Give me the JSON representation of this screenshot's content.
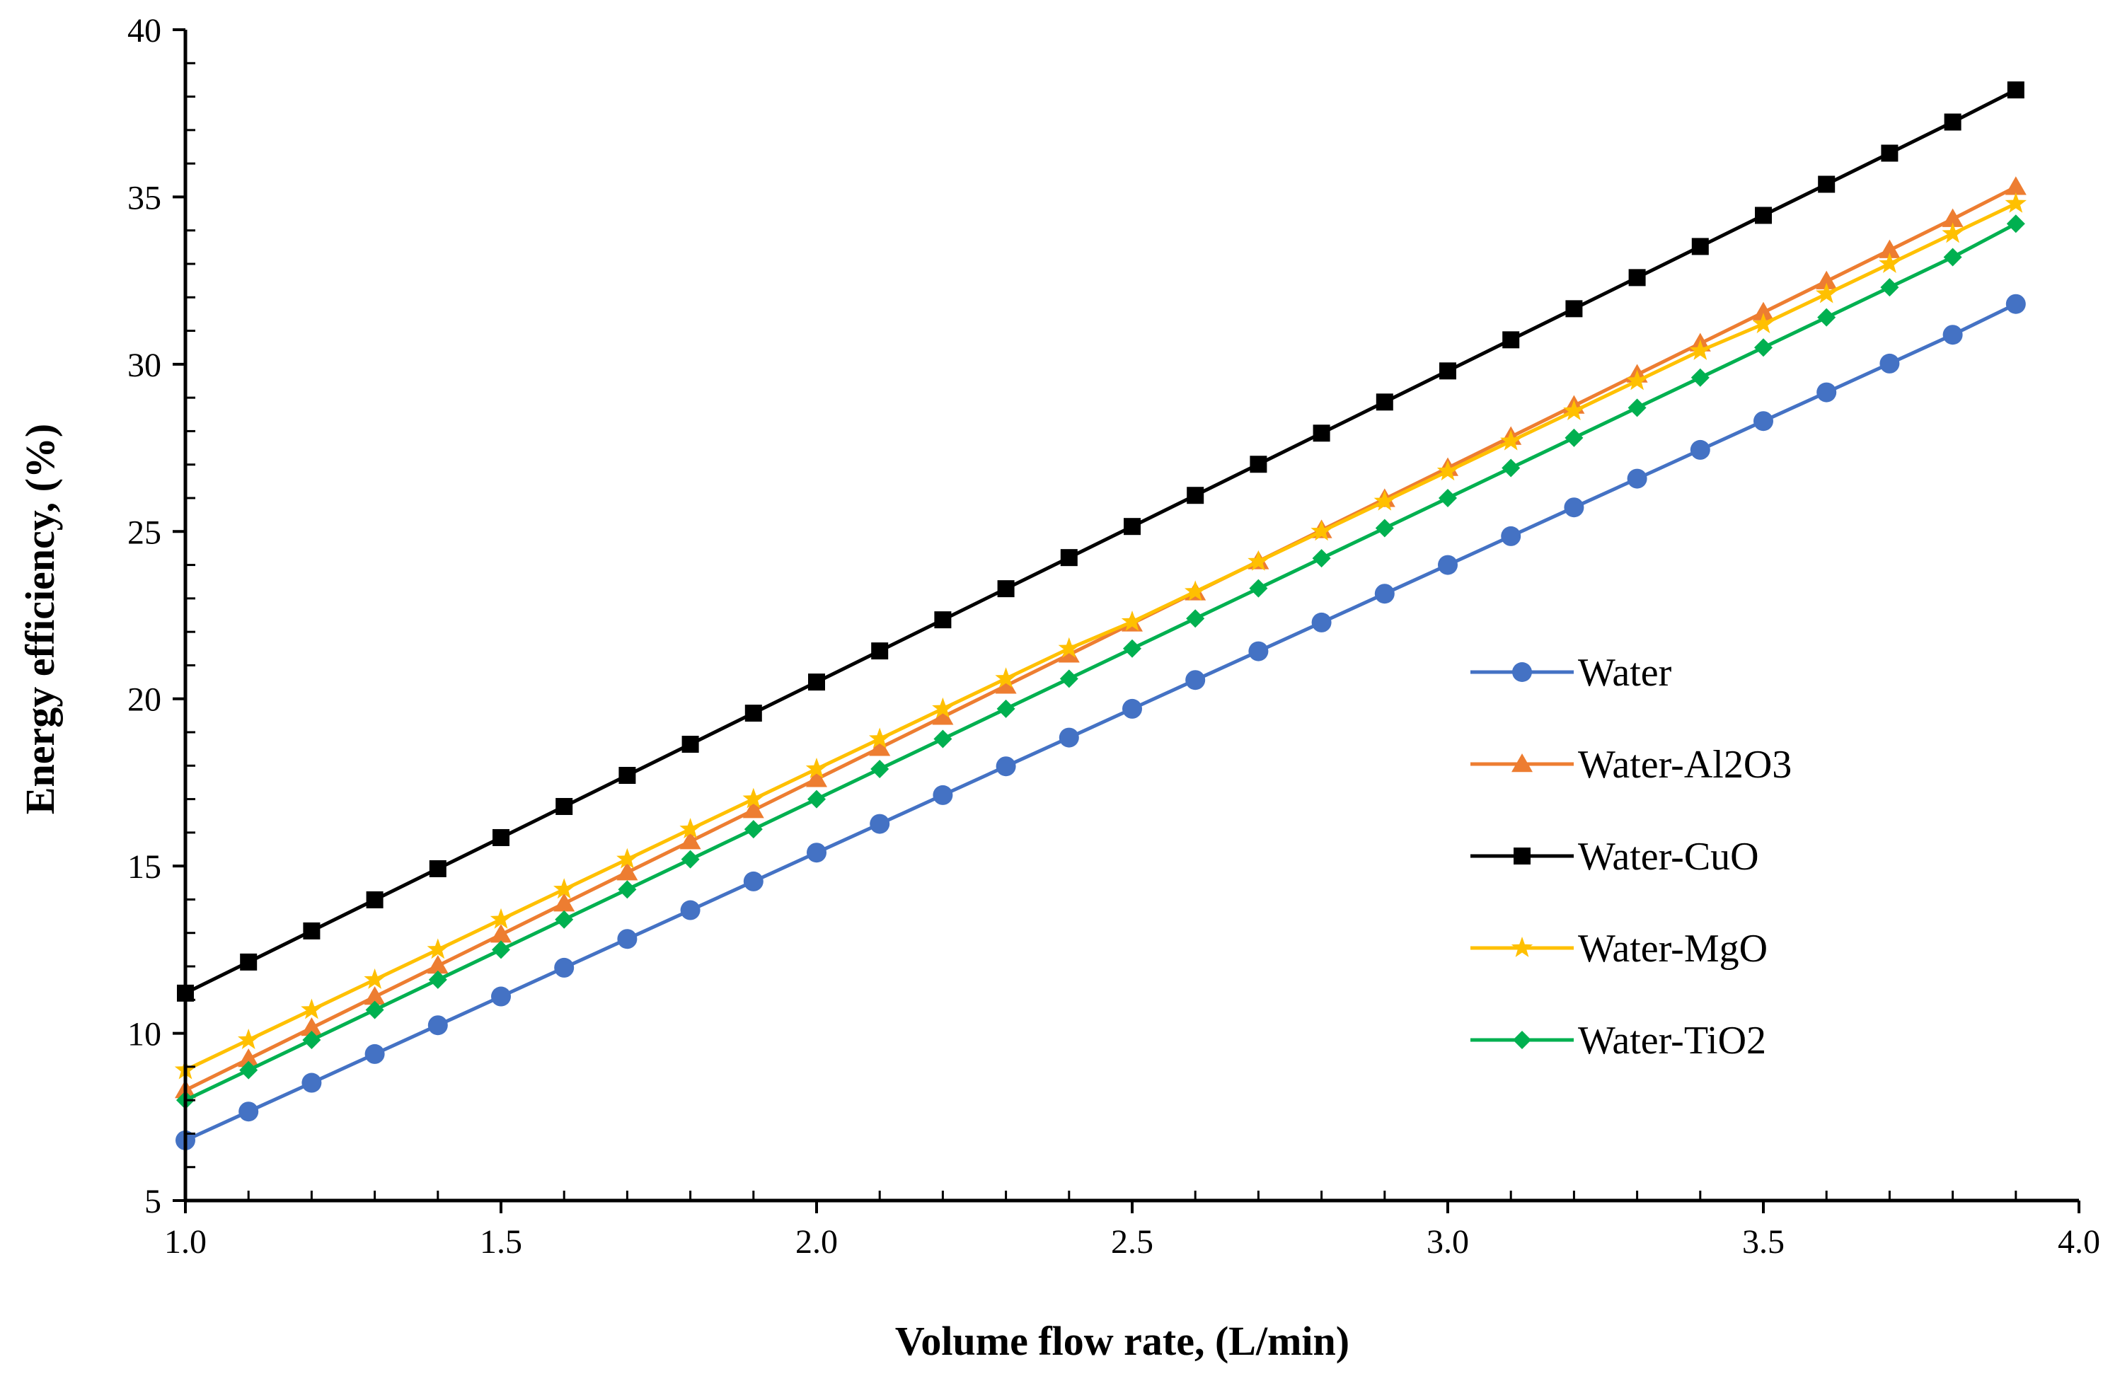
{
  "chart_data": {
    "type": "line",
    "title": "",
    "xlabel": "Volume flow rate, (L/min)",
    "ylabel": "Energy efficiency, (%)",
    "xlim": [
      1.0,
      4.0
    ],
    "ylim": [
      5,
      40
    ],
    "xticks": [
      1.0,
      1.5,
      2.0,
      2.5,
      3.0,
      3.5,
      4.0
    ],
    "xtick_labels": [
      "1.0",
      "1.5",
      "2.0",
      "2.5",
      "3.0",
      "3.5",
      "4.0"
    ],
    "yticks": [
      5,
      10,
      15,
      20,
      25,
      30,
      35,
      40
    ],
    "ytick_labels": [
      "5",
      "10",
      "15",
      "20",
      "25",
      "30",
      "35",
      "40"
    ],
    "grid": false,
    "legend_position": "right",
    "x": [
      1.0,
      1.1,
      1.2,
      1.3,
      1.4,
      1.5,
      1.6,
      1.7,
      1.8,
      1.9,
      2.0,
      2.1,
      2.2,
      2.3,
      2.4,
      2.5,
      2.6,
      2.7,
      2.8,
      2.9,
      3.0,
      3.1,
      3.2,
      3.3,
      3.4,
      3.5,
      3.6,
      3.7,
      3.8,
      3.9
    ],
    "series": [
      {
        "name": "Water",
        "color": "#4472C4",
        "marker": "circle",
        "values": [
          6.8,
          7.66,
          8.52,
          9.38,
          10.24,
          11.1,
          11.96,
          12.82,
          13.68,
          14.54,
          15.4,
          16.26,
          17.12,
          17.98,
          18.84,
          19.7,
          20.56,
          21.42,
          22.28,
          23.14,
          24.0,
          24.86,
          25.72,
          26.58,
          27.44,
          28.3,
          29.16,
          30.02,
          30.88,
          31.8
        ]
      },
      {
        "name": "Water-Al2O3",
        "color": "#ED7D31",
        "marker": "triangle",
        "values": [
          8.3,
          9.23,
          10.16,
          11.09,
          12.02,
          12.95,
          13.88,
          14.81,
          15.74,
          16.67,
          17.6,
          18.53,
          19.46,
          20.39,
          21.32,
          22.25,
          23.18,
          24.11,
          25.04,
          25.97,
          26.9,
          27.83,
          28.76,
          29.69,
          30.62,
          31.55,
          32.48,
          33.41,
          34.34,
          35.3
        ]
      },
      {
        "name": "Water-CuO",
        "color": "#000000",
        "marker": "square",
        "values": [
          11.2,
          12.13,
          13.06,
          13.99,
          14.92,
          15.85,
          16.78,
          17.71,
          18.64,
          19.57,
          20.5,
          21.43,
          22.36,
          23.29,
          24.22,
          25.15,
          26.08,
          27.01,
          27.94,
          28.87,
          29.8,
          30.73,
          31.66,
          32.59,
          33.52,
          34.45,
          35.38,
          36.31,
          37.24,
          38.2
        ]
      },
      {
        "name": "Water-MgO",
        "color": "#FFC000",
        "marker": "star",
        "values": [
          8.9,
          9.8,
          10.7,
          11.6,
          12.5,
          13.4,
          14.3,
          15.2,
          16.1,
          17.0,
          17.9,
          18.8,
          19.7,
          20.6,
          21.5,
          22.3,
          23.2,
          24.1,
          25.0,
          25.9,
          26.8,
          27.7,
          28.6,
          29.5,
          30.4,
          31.2,
          32.1,
          33.0,
          33.9,
          34.8
        ]
      },
      {
        "name": "Water-TiO2",
        "color": "#00B050",
        "marker": "diamond",
        "values": [
          8.0,
          8.9,
          9.8,
          10.7,
          11.6,
          12.5,
          13.4,
          14.3,
          15.2,
          16.1,
          17.0,
          17.9,
          18.8,
          19.7,
          20.6,
          21.5,
          22.4,
          23.3,
          24.2,
          25.1,
          26.0,
          26.9,
          27.8,
          28.7,
          29.6,
          30.5,
          31.4,
          32.3,
          33.2,
          34.2
        ]
      }
    ]
  }
}
